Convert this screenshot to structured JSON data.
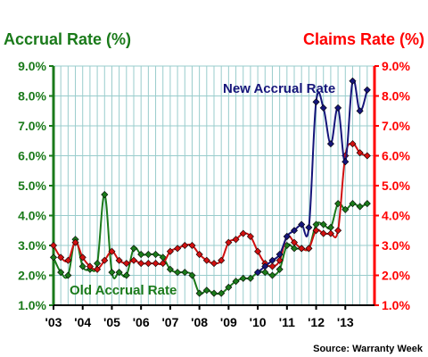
{
  "chart_data": {
    "type": "line",
    "left_axis_title": "Accrual Rate (%)",
    "right_axis_title": "Claims Rate (%)",
    "source": "Source: Warranty Week",
    "x_tick_labels": [
      "'03",
      "'04",
      "'05",
      "'06",
      "'07",
      "'08",
      "'09",
      "'10",
      "'11",
      "'12",
      "'13"
    ],
    "x_range": [
      2003.0,
      2014.0
    ],
    "y_range": [
      1.0,
      9.0
    ],
    "y_tick_labels": [
      "1.0%",
      "2.0%",
      "3.0%",
      "4.0%",
      "5.0%",
      "6.0%",
      "7.0%",
      "8.0%",
      "9.0%"
    ],
    "y_ticks": [
      1,
      2,
      3,
      4,
      5,
      6,
      7,
      8,
      9
    ],
    "grid": true,
    "colors": {
      "left_axis": "#1a7a1a",
      "right_axis": "#ff0000",
      "grid": "#99cccc",
      "old_accrual": "#1a7a1a",
      "claims": "#d01010",
      "new_accrual": "#15157a"
    },
    "series": [
      {
        "name": "Old Accrual Rate",
        "label_color": "#1a7a1a",
        "x": [
          2003.0,
          2003.25,
          2003.5,
          2003.75,
          2004.0,
          2004.25,
          2004.5,
          2004.75,
          2005.0,
          2005.25,
          2005.5,
          2005.75,
          2006.0,
          2006.25,
          2006.5,
          2006.75,
          2007.0,
          2007.25,
          2007.5,
          2007.75,
          2008.0,
          2008.25,
          2008.5,
          2008.75,
          2009.0,
          2009.25,
          2009.5,
          2009.75,
          2010.0,
          2010.25,
          2010.5,
          2010.75,
          2011.0,
          2011.25,
          2011.5,
          2011.75,
          2012.0,
          2012.25,
          2012.5,
          2012.75,
          2013.0,
          2013.25,
          2013.5,
          2013.75
        ],
        "y": [
          2.6,
          2.1,
          2.0,
          3.2,
          2.3,
          2.2,
          2.4,
          4.7,
          2.1,
          2.1,
          2.0,
          2.9,
          2.7,
          2.7,
          2.7,
          2.6,
          2.2,
          2.1,
          2.1,
          2.0,
          1.4,
          1.5,
          1.4,
          1.4,
          1.6,
          1.8,
          1.9,
          1.9,
          2.1,
          2.1,
          2.0,
          2.2,
          3.0,
          2.9,
          2.9,
          2.9,
          3.7,
          3.7,
          3.6,
          4.4,
          4.2,
          4.4,
          4.3,
          4.4
        ]
      },
      {
        "name": "",
        "label_color": "#d01010",
        "x": [
          2003.0,
          2003.25,
          2003.5,
          2003.75,
          2004.0,
          2004.25,
          2004.5,
          2004.75,
          2005.0,
          2005.25,
          2005.5,
          2005.75,
          2006.0,
          2006.25,
          2006.5,
          2006.75,
          2007.0,
          2007.25,
          2007.5,
          2007.75,
          2008.0,
          2008.25,
          2008.5,
          2008.75,
          2009.0,
          2009.25,
          2009.5,
          2009.75,
          2010.0,
          2010.25,
          2010.5,
          2010.75,
          2011.0,
          2011.25,
          2011.5,
          2011.75,
          2012.0,
          2012.25,
          2012.5,
          2012.75,
          2013.0,
          2013.25,
          2013.5,
          2013.75
        ],
        "y": [
          3.0,
          2.6,
          2.5,
          3.1,
          2.6,
          2.3,
          2.2,
          2.5,
          2.8,
          2.5,
          2.4,
          2.5,
          2.4,
          2.4,
          2.4,
          2.4,
          2.8,
          2.9,
          3.0,
          3.0,
          2.7,
          2.5,
          2.4,
          2.5,
          3.1,
          3.2,
          3.4,
          3.3,
          2.8,
          2.4,
          2.3,
          2.5,
          3.3,
          3.1,
          2.9,
          2.9,
          3.5,
          3.4,
          3.4,
          3.5,
          6.0,
          6.4,
          6.1,
          6.0
        ]
      },
      {
        "name": "New Accrual Rate",
        "label_color": "#15157a",
        "x": [
          2010.0,
          2010.25,
          2010.5,
          2010.75,
          2011.0,
          2011.25,
          2011.5,
          2011.75,
          2012.0,
          2012.25,
          2012.5,
          2012.75,
          2013.0,
          2013.25,
          2013.5,
          2013.75
        ],
        "y": [
          2.1,
          2.3,
          2.5,
          2.7,
          3.3,
          3.5,
          3.7,
          3.6,
          7.8,
          7.6,
          6.4,
          7.6,
          5.8,
          8.5,
          7.5,
          8.2
        ]
      }
    ]
  }
}
